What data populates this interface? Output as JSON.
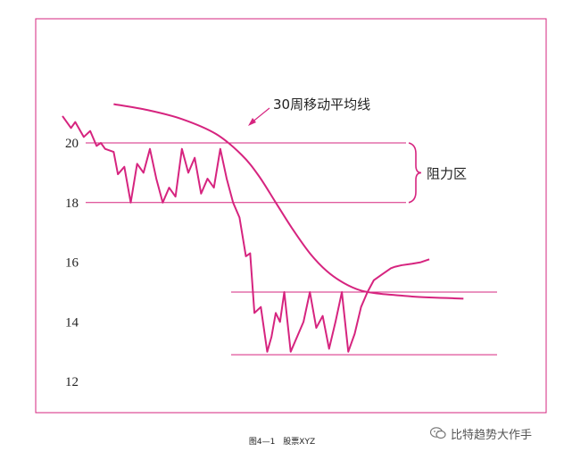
{
  "chart_data": {
    "type": "line",
    "ylim": [
      11.2,
      21.4
    ],
    "xlim": [
      0,
      100
    ],
    "ytick_labels": [
      "12",
      "14",
      "16",
      "18",
      "20"
    ],
    "yticks": [
      12,
      14,
      16,
      18,
      20
    ],
    "series": [
      {
        "key": "price",
        "x": [
          0,
          2,
          3,
          5,
          6.5,
          8,
          9,
          10,
          12,
          13,
          14.5,
          16,
          17.5,
          19,
          20.5,
          22,
          23.5,
          25,
          26.5,
          28,
          29.5,
          31,
          32.5,
          34,
          35.5,
          37,
          38.5,
          40,
          41.5,
          43,
          44,
          45,
          46.5,
          48,
          49,
          50,
          51,
          52,
          53.5,
          55,
          56.5,
          58,
          59.5,
          61,
          62.5,
          64,
          65.5,
          67,
          68.5,
          70,
          71.5,
          73,
          75,
          77,
          78,
          79.5,
          82,
          84,
          86
        ],
        "values": [
          20.9,
          20.5,
          20.7,
          20.2,
          20.4,
          19.9,
          20.0,
          19.8,
          19.7,
          18.95,
          19.2,
          18.0,
          19.3,
          19.0,
          19.8,
          18.8,
          18.0,
          18.5,
          18.2,
          19.8,
          19.0,
          19.5,
          18.3,
          18.8,
          18.5,
          19.8,
          18.8,
          18.0,
          17.5,
          16.2,
          16.3,
          14.3,
          14.5,
          13.0,
          13.5,
          14.3,
          14.0,
          15.0,
          13.0,
          13.5,
          14.0,
          15.0,
          13.8,
          14.2,
          13.1,
          14.0,
          15.0,
          13.0,
          13.6,
          14.5,
          15.0,
          15.4,
          15.6,
          15.8,
          15.85,
          15.9,
          15.95,
          16.0,
          16.1
        ]
      },
      {
        "key": "ma30",
        "x": [
          12,
          20,
          28,
          36,
          42,
          46,
          50,
          54,
          58,
          62,
          66,
          70,
          74,
          78,
          82,
          86,
          90,
          94
        ],
        "values": [
          21.3,
          21.1,
          20.8,
          20.3,
          19.6,
          18.9,
          18.0,
          17.1,
          16.3,
          15.7,
          15.3,
          15.05,
          14.95,
          14.9,
          14.85,
          14.82,
          14.8,
          14.78
        ]
      }
    ],
    "resistance_levels": [
      20,
      18
    ],
    "support_levels": [
      15,
      12.9
    ],
    "annotations": {
      "ma_label": "30周移动平均线",
      "resistance_label": "阻力区"
    },
    "caption": "图4—1　股票XYZ",
    "colors": {
      "line": "#d6247f",
      "frame": "#d6247f",
      "text": "#222222"
    }
  },
  "watermark": {
    "icon": "wechat-icon",
    "text": "比特趋势大作手"
  }
}
